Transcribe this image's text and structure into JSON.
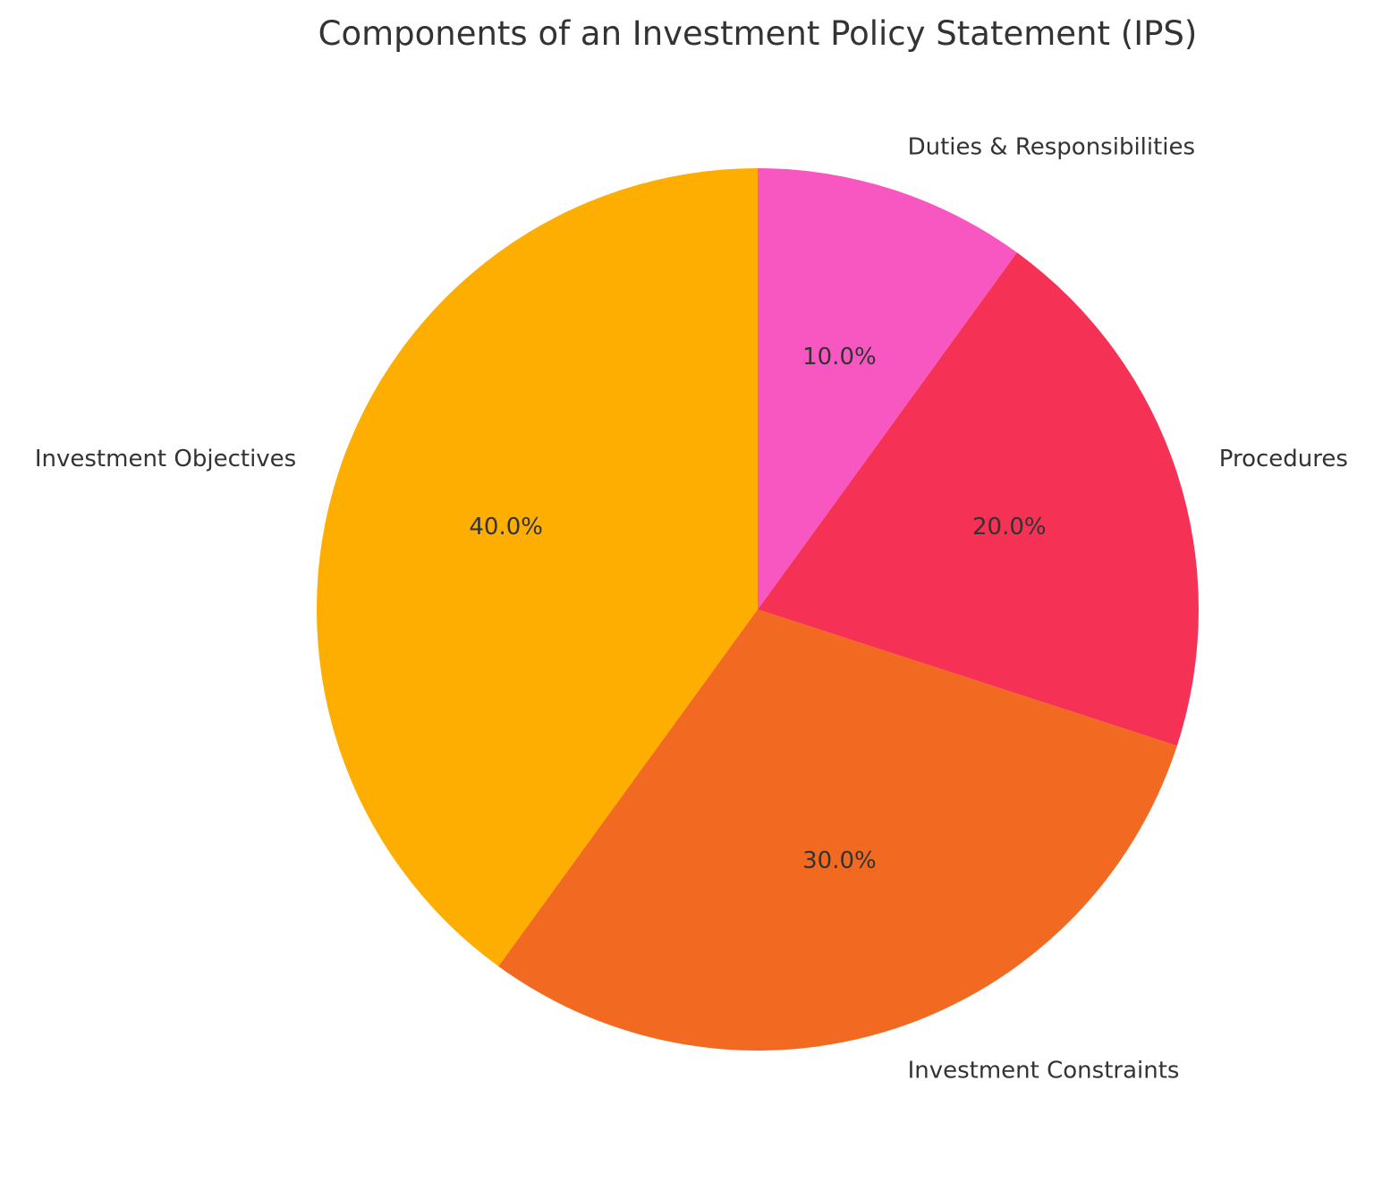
{
  "chart_data": {
    "type": "pie",
    "title": "Components of an Investment Policy Statement (IPS)",
    "categories": [
      "Investment Objectives",
      "Investment Constraints",
      "Procedures",
      "Duties & Responsibilities"
    ],
    "values": [
      40,
      30,
      20,
      10
    ],
    "percent_labels": [
      "40.0%",
      "30.0%",
      "20.0%",
      "10.0%"
    ],
    "colors": [
      "#FDAE00",
      "#F26A21",
      "#F53255",
      "#F857C1"
    ],
    "start_angle_deg": 90,
    "direction": "counterclockwise",
    "legend": "none"
  }
}
